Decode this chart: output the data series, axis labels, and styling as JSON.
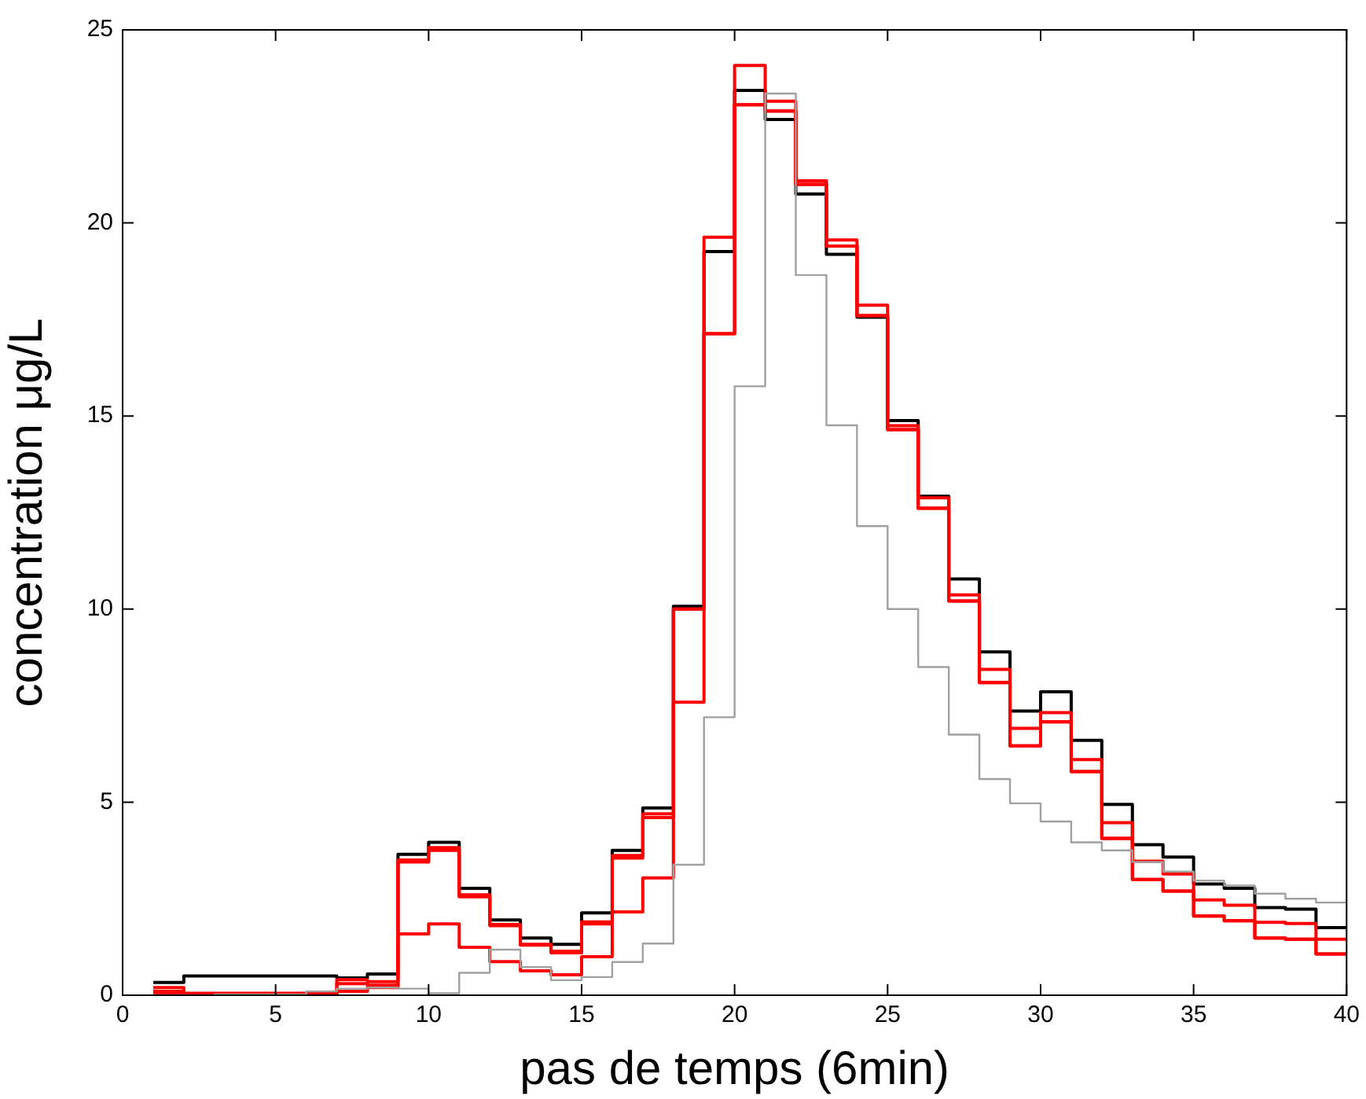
{
  "chart_data": {
    "type": "step",
    "xlabel": "pas de temps (6min)",
    "ylabel": "concentration μg/L",
    "x": [
      1,
      2,
      3,
      4,
      5,
      6,
      7,
      8,
      9,
      10,
      11,
      12,
      13,
      14,
      15,
      16,
      17,
      18,
      19,
      20,
      21,
      22,
      23,
      24,
      25,
      26,
      27,
      28,
      29,
      30,
      31,
      32,
      33,
      34,
      35,
      36,
      37,
      38,
      39,
      40
    ],
    "series": [
      {
        "color": "#a0a0a0",
        "values": [
          0,
          0,
          0.02,
          0.02,
          0.02,
          0.1,
          0.17,
          0.2,
          0.17,
          0.05,
          0.58,
          1.18,
          0.73,
          0.39,
          0.47,
          0.86,
          1.34,
          3.38,
          7.2,
          15.77,
          23.35,
          18.65,
          14.76,
          12.15,
          10.0,
          8.5,
          6.75,
          5.6,
          4.97,
          4.5,
          3.96,
          3.75,
          3.45,
          3.2,
          2.97,
          2.84,
          2.63,
          2.5,
          2.4,
          2.4
        ]
      },
      {
        "color": "#ff0000",
        "values": [
          0.05,
          0.01,
          0.01,
          0.01,
          0.01,
          0.01,
          0.1,
          0.2,
          1.59,
          1.85,
          1.24,
          0.87,
          0.63,
          0.53,
          1.0,
          2.16,
          3.04,
          7.59,
          17.13,
          23.06,
          22.9,
          21.0,
          19.4,
          17.6,
          14.65,
          12.61,
          10.21,
          8.1,
          6.46,
          7.08,
          5.79,
          4.06,
          3.0,
          2.7,
          2.05,
          1.93,
          1.48,
          1.45,
          1.07,
          1.07
        ]
      },
      {
        "color": "#ff0000",
        "values": [
          0.1,
          0.03,
          0.03,
          0.03,
          0.03,
          0.03,
          0.3,
          0.26,
          3.45,
          3.75,
          2.55,
          1.8,
          1.3,
          1.1,
          1.85,
          3.55,
          4.6,
          10.0,
          17.13,
          23.06,
          22.9,
          21.0,
          19.4,
          17.6,
          14.65,
          12.61,
          10.21,
          8.1,
          6.46,
          7.08,
          5.79,
          4.06,
          3.0,
          2.7,
          2.05,
          1.93,
          1.48,
          1.45,
          1.07,
          1.07
        ]
      },
      {
        "color": "#ff0000",
        "values": [
          0.2,
          0.05,
          0.05,
          0.05,
          0.05,
          0.05,
          0.4,
          0.35,
          3.5,
          3.82,
          2.6,
          1.83,
          1.32,
          1.14,
          1.9,
          3.62,
          4.7,
          10.0,
          19.63,
          24.08,
          23.15,
          21.09,
          19.56,
          17.87,
          14.75,
          12.88,
          10.37,
          8.44,
          6.91,
          7.32,
          6.1,
          4.47,
          3.47,
          3.14,
          2.47,
          2.33,
          1.89,
          1.86,
          1.45,
          1.45
        ]
      },
      {
        "color": "#000000",
        "values": [
          0.33,
          0.5,
          0.5,
          0.5,
          0.5,
          0.5,
          0.45,
          0.55,
          3.65,
          3.96,
          2.77,
          1.95,
          1.48,
          1.32,
          2.13,
          3.75,
          4.85,
          10.07,
          19.26,
          23.43,
          22.68,
          20.75,
          19.19,
          17.56,
          14.88,
          12.92,
          10.78,
          8.89,
          7.36,
          7.86,
          6.6,
          4.94,
          3.9,
          3.58,
          2.88,
          2.77,
          2.27,
          2.23,
          1.75,
          1.75
        ]
      }
    ],
    "xlim": [
      0,
      40
    ],
    "xticks": [
      0,
      5,
      10,
      15,
      20,
      25,
      30,
      35,
      40
    ],
    "ylim": [
      0,
      25
    ],
    "yticks": [
      0,
      5,
      10,
      15,
      20,
      25
    ]
  }
}
